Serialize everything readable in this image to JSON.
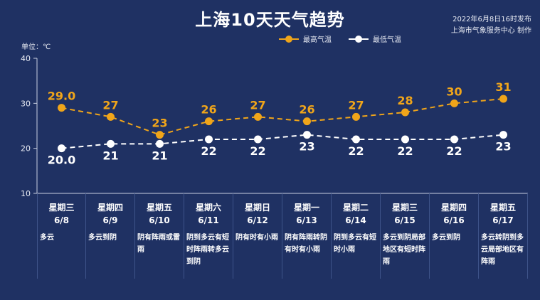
{
  "title": "上海10天天气趋势",
  "publish_info": "2022年6月8日16时发布",
  "publisher": "上海市气象服务中心 制作",
  "unit": "单位：℃",
  "colors": {
    "high": "#f0a51a",
    "low": "#ffffff"
  },
  "chart_data": {
    "type": "line",
    "categories": [
      "6/8",
      "6/9",
      "6/10",
      "6/11",
      "6/12",
      "6/13",
      "6/14",
      "6/15",
      "6/16",
      "6/17"
    ],
    "yticks": [
      10,
      20,
      30,
      40
    ],
    "ylim": [
      10,
      40
    ],
    "series": [
      {
        "name": "最高气温",
        "values": [
          29.0,
          27,
          23,
          26,
          27,
          26,
          27,
          28,
          30,
          31
        ],
        "labels": [
          "29.0",
          "27",
          "23",
          "26",
          "27",
          "26",
          "27",
          "28",
          "30",
          "31"
        ]
      },
      {
        "name": "最低气温",
        "values": [
          20.0,
          21,
          21,
          22,
          22,
          23,
          22,
          22,
          22,
          23
        ],
        "labels": [
          "20.0",
          "21",
          "21",
          "22",
          "22",
          "23",
          "22",
          "22",
          "22",
          "23"
        ]
      }
    ],
    "legend_position": "top-right",
    "grid": false
  },
  "days": [
    {
      "weekday": "星期三",
      "date": "6/8",
      "desc": "多云"
    },
    {
      "weekday": "星期四",
      "date": "6/9",
      "desc": "多云到阴"
    },
    {
      "weekday": "星期五",
      "date": "6/10",
      "desc": "阴有阵雨或雷雨"
    },
    {
      "weekday": "星期六",
      "date": "6/11",
      "desc": "阴到多云有短时阵雨转多云到阴"
    },
    {
      "weekday": "星期日",
      "date": "6/12",
      "desc": "阴有时有小雨"
    },
    {
      "weekday": "星期一",
      "date": "6/13",
      "desc": "阴有阵雨转阴有时有小雨"
    },
    {
      "weekday": "星期二",
      "date": "6/14",
      "desc": "阴到多云有短时小雨"
    },
    {
      "weekday": "星期三",
      "date": "6/15",
      "desc": "多云到阴局部地区有短时阵雨"
    },
    {
      "weekday": "星期四",
      "date": "6/16",
      "desc": "多云到阴"
    },
    {
      "weekday": "星期五",
      "date": "6/17",
      "desc": "多云转阴到多云局部地区有阵雨"
    }
  ]
}
